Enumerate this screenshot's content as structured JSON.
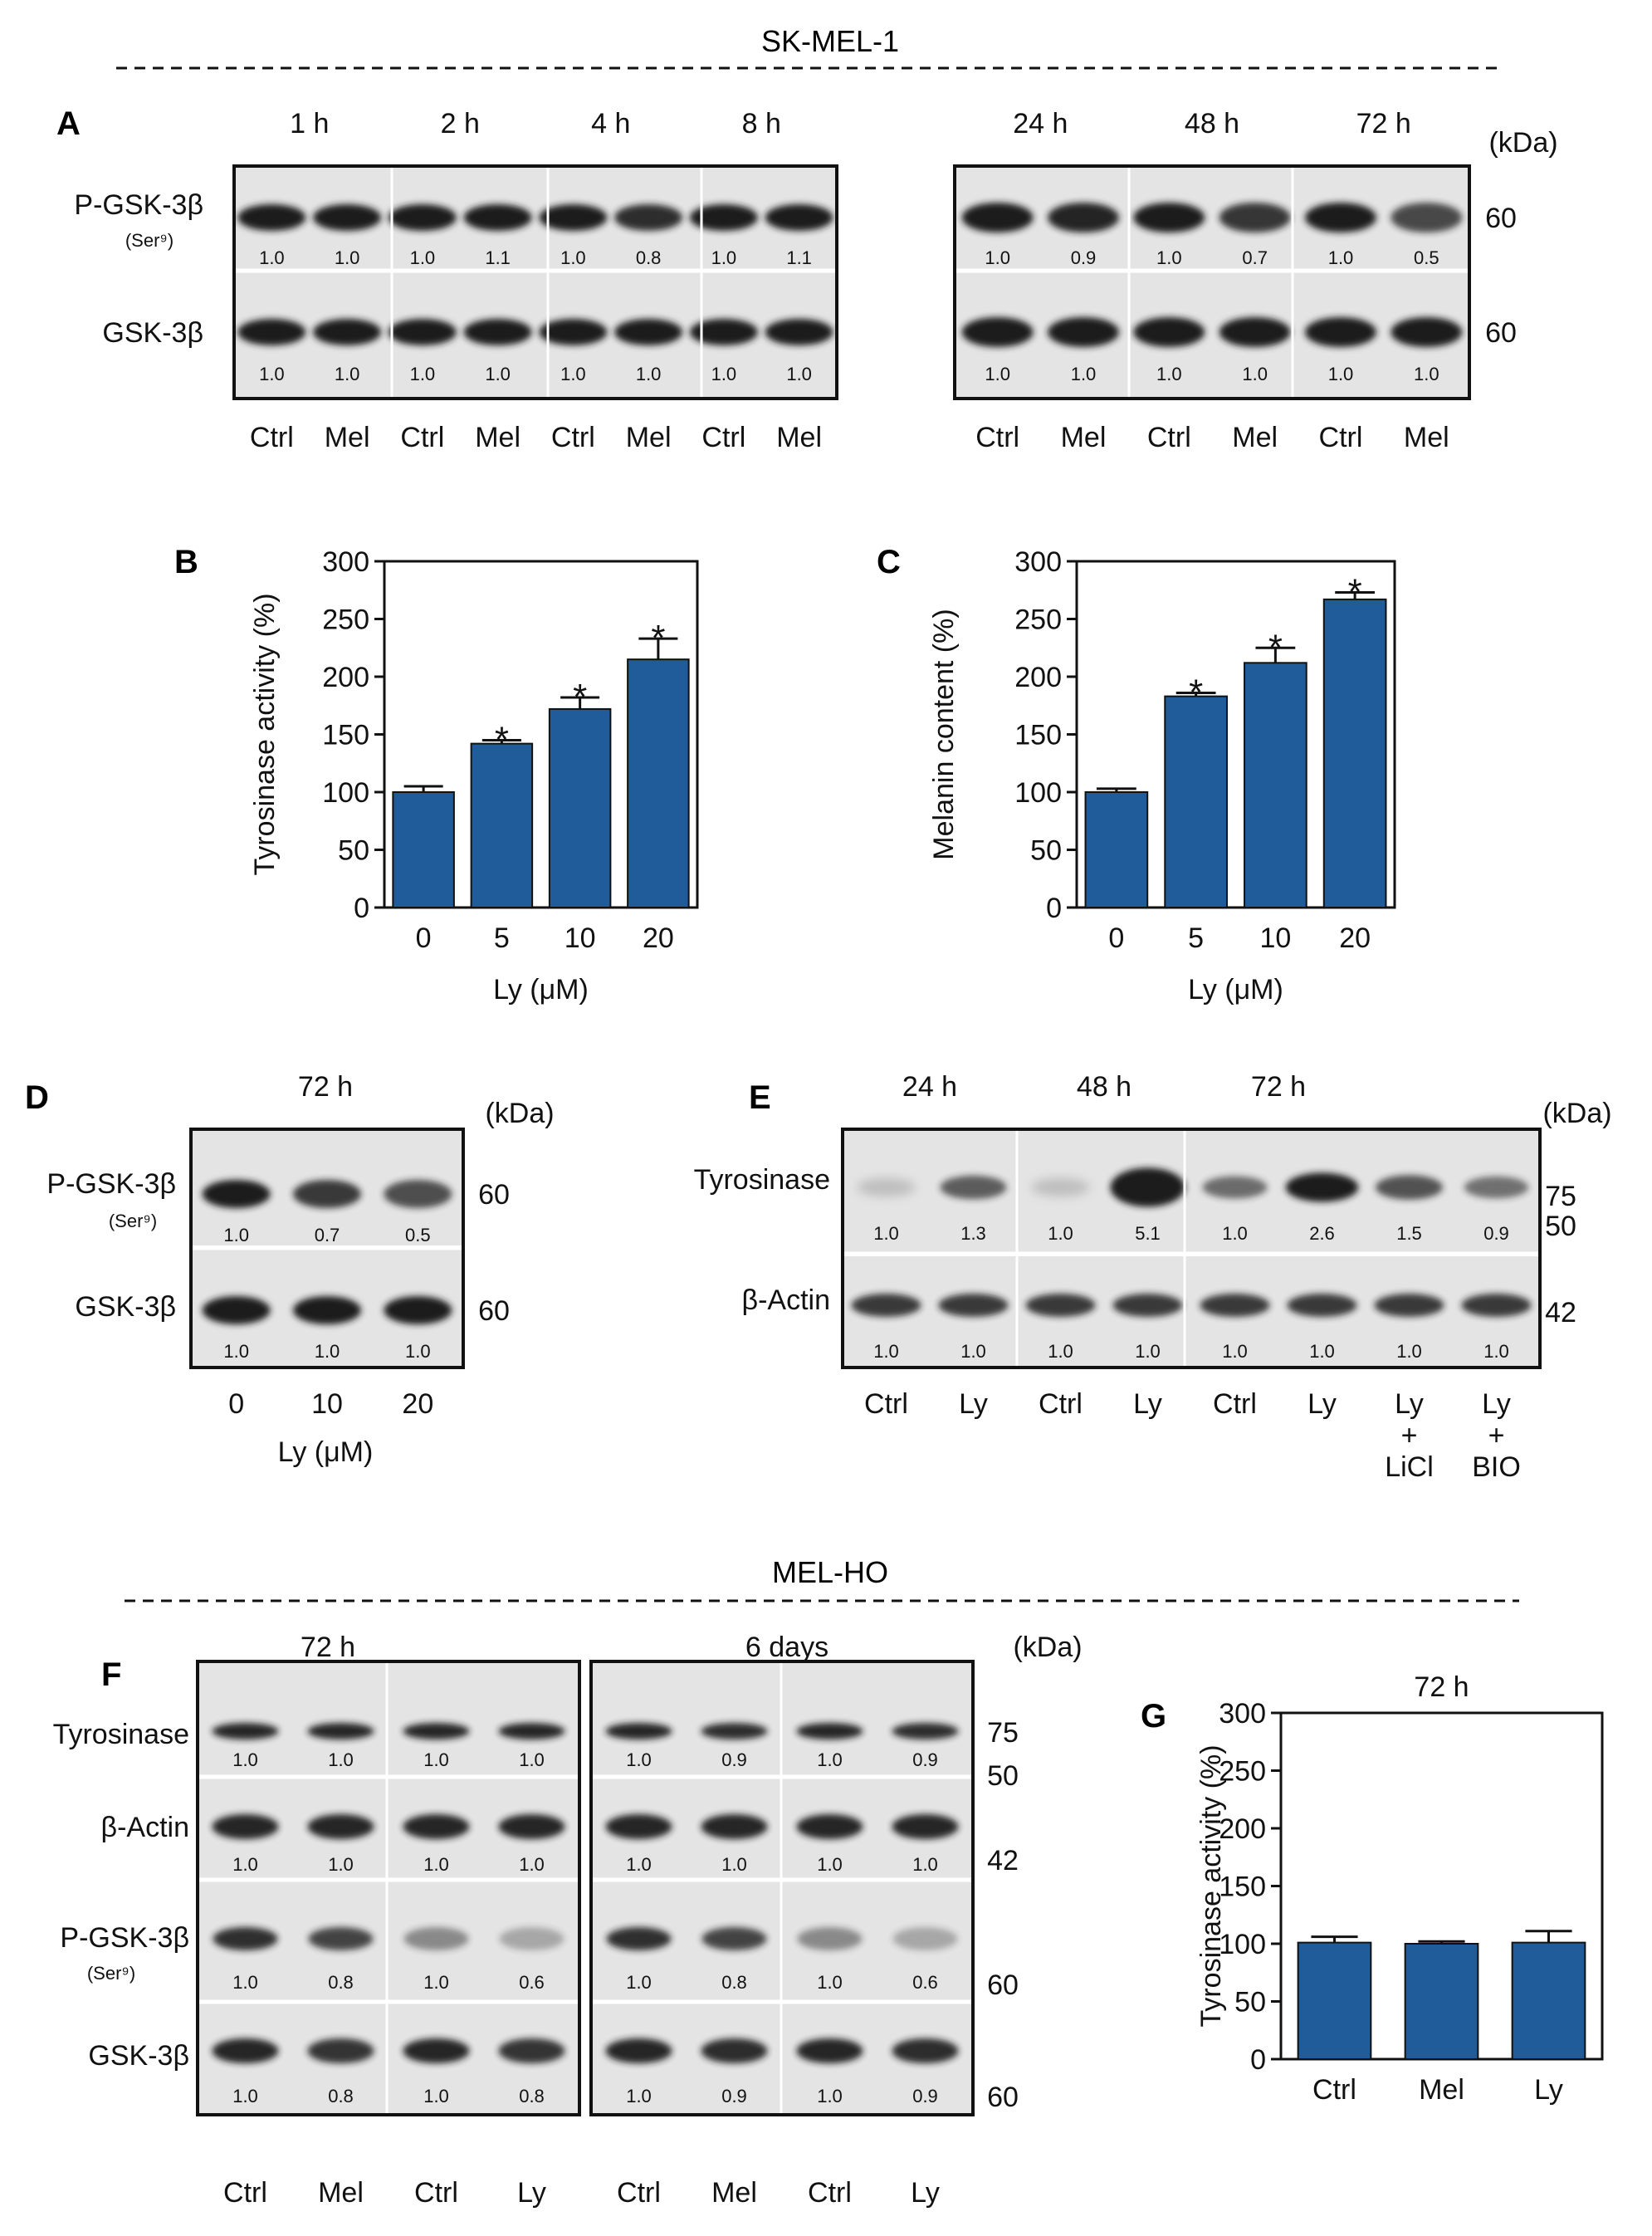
{
  "kda_label": "(kDa)",
  "sections": {
    "top": "SK-MEL-1",
    "bottom": "MEL-HO"
  },
  "colors": {
    "bar": "#1f5c99",
    "text": "#111111",
    "blot_bg": "#e4e4e4",
    "band": "#1b1b1b"
  },
  "panelA": {
    "letter": "A",
    "left_times": [
      "1 h",
      "2 h",
      "4 h",
      "8 h"
    ],
    "right_times": [
      "24 h",
      "48 h",
      "72 h"
    ],
    "rows": [
      {
        "label": "P-GSK-3β",
        "sub": "(Ser⁹)",
        "kda": "60",
        "left": [
          "1.0",
          "1.0",
          "1.0",
          "1.1",
          "1.0",
          "0.8",
          "1.0",
          "1.1"
        ],
        "right": [
          "1.0",
          "0.9",
          "1.0",
          "0.7",
          "1.0",
          "0.5"
        ]
      },
      {
        "label": "GSK-3β",
        "sub": "",
        "kda": "60",
        "left": [
          "1.0",
          "1.0",
          "1.0",
          "1.0",
          "1.0",
          "1.0",
          "1.0",
          "1.0"
        ],
        "right": [
          "1.0",
          "1.0",
          "1.0",
          "1.0",
          "1.0",
          "1.0"
        ]
      }
    ],
    "left_lanes": [
      "Ctrl",
      "Mel",
      "Ctrl",
      "Mel",
      "Ctrl",
      "Mel",
      "Ctrl",
      "Mel"
    ],
    "right_lanes": [
      "Ctrl",
      "Mel",
      "Ctrl",
      "Mel",
      "Ctrl",
      "Mel"
    ]
  },
  "panelD": {
    "letter": "D",
    "time": "72 h",
    "rows": [
      {
        "label": "P-GSK-3β",
        "sub": "(Ser⁹)",
        "kda": "60",
        "values": [
          "1.0",
          "0.7",
          "0.5"
        ]
      },
      {
        "label": "GSK-3β",
        "sub": "",
        "kda": "60",
        "values": [
          "1.0",
          "1.0",
          "1.0"
        ]
      }
    ],
    "lanes": [
      "0",
      "10",
      "20"
    ],
    "xlabel": "Ly (μM)"
  },
  "panelE": {
    "letter": "E",
    "times": [
      "24 h",
      "48 h",
      "72 h"
    ],
    "rows": [
      {
        "label": "Tyrosinase",
        "kda": [
          "75",
          "50"
        ],
        "values": [
          "1.0",
          "1.3",
          "1.0",
          "5.1",
          "1.0",
          "2.6",
          "1.5",
          "0.9"
        ]
      },
      {
        "label": "β-Actin",
        "kda": [
          "42"
        ],
        "values": [
          "1.0",
          "1.0",
          "1.0",
          "1.0",
          "1.0",
          "1.0",
          "1.0",
          "1.0"
        ]
      }
    ],
    "lanes": [
      [
        "Ctrl"
      ],
      [
        "Ly"
      ],
      [
        "Ctrl"
      ],
      [
        "Ly"
      ],
      [
        "Ctrl"
      ],
      [
        "Ly"
      ],
      [
        "Ly",
        "+",
        "LiCl"
      ],
      [
        "Ly",
        "+",
        "BIO"
      ]
    ]
  },
  "panelF": {
    "letter": "F",
    "times": [
      "72 h",
      "6 days"
    ],
    "rows": [
      {
        "label": "Tyrosinase",
        "sub": "",
        "kda": [
          "75",
          "50"
        ],
        "left": [
          "1.0",
          "1.0",
          "1.0",
          "1.0"
        ],
        "right": [
          "1.0",
          "0.9",
          "1.0",
          "0.9"
        ]
      },
      {
        "label": "β-Actin",
        "sub": "",
        "kda": [
          "42"
        ],
        "left": [
          "1.0",
          "1.0",
          "1.0",
          "1.0"
        ],
        "right": [
          "1.0",
          "1.0",
          "1.0",
          "1.0"
        ]
      },
      {
        "label": "P-GSK-3β",
        "sub": "(Ser⁹)",
        "kda": [
          "60"
        ],
        "left": [
          "1.0",
          "0.8",
          "1.0",
          "0.6"
        ],
        "right": [
          "1.0",
          "0.8",
          "1.0",
          "0.6"
        ]
      },
      {
        "label": "GSK-3β",
        "sub": "",
        "kda": [
          "60"
        ],
        "left": [
          "1.0",
          "0.8",
          "1.0",
          "0.8"
        ],
        "right": [
          "1.0",
          "0.9",
          "1.0",
          "0.9"
        ]
      }
    ],
    "lanes": [
      "Ctrl",
      "Mel",
      "Ctrl",
      "Ly"
    ]
  },
  "chart_data": [
    {
      "id": "B",
      "type": "bar",
      "categories": [
        "0",
        "5",
        "10",
        "20"
      ],
      "values": [
        100,
        142,
        172,
        215
      ],
      "errors": [
        5,
        3,
        10,
        18
      ],
      "significant": [
        false,
        true,
        true,
        true
      ],
      "marker": "*",
      "title": "",
      "xlabel": "Ly (μM)",
      "ylabel": "Tyrosinase activity (%)",
      "ylim": [
        0,
        300
      ],
      "yticks": [
        0,
        50,
        100,
        150,
        200,
        250,
        300
      ]
    },
    {
      "id": "C",
      "type": "bar",
      "categories": [
        "0",
        "5",
        "10",
        "20"
      ],
      "values": [
        100,
        183,
        212,
        267
      ],
      "errors": [
        3,
        3,
        13,
        6
      ],
      "significant": [
        false,
        true,
        true,
        true
      ],
      "marker": "*",
      "title": "",
      "xlabel": "Ly (μM)",
      "ylabel": "Melanin content (%)",
      "ylim": [
        0,
        300
      ],
      "yticks": [
        0,
        50,
        100,
        150,
        200,
        250,
        300
      ]
    },
    {
      "id": "G",
      "type": "bar",
      "categories": [
        "Ctrl",
        "Mel",
        "Ly"
      ],
      "values": [
        101,
        100,
        101
      ],
      "errors": [
        5,
        2,
        10
      ],
      "significant": [
        false,
        false,
        false
      ],
      "marker": "*",
      "title": "72 h",
      "xlabel": "",
      "ylabel": "Tyrosinase activity (%)",
      "ylim": [
        0,
        300
      ],
      "yticks": [
        0,
        50,
        100,
        150,
        200,
        250,
        300
      ]
    }
  ]
}
